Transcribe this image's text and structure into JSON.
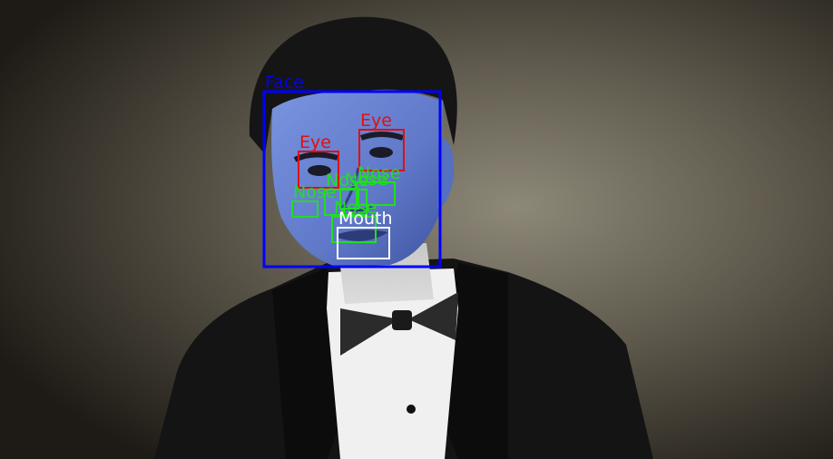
{
  "scene": {
    "description_colors": {
      "background_dark": "#1f1c17",
      "background_light": "#8a8574",
      "face_tint": "#6e88d8",
      "hair": "#161616",
      "jacket": "#151515",
      "shirt": "#f2f2f2"
    }
  },
  "detections": [
    {
      "label": "Face",
      "color": "#0000ff"
    },
    {
      "label": "Eye",
      "color": "#e01010"
    },
    {
      "label": "Eye",
      "color": "#e01010"
    },
    {
      "label": "Nose",
      "color": "#22dd22"
    },
    {
      "label": "Nose",
      "color": "#22dd22"
    },
    {
      "label": "Nose",
      "color": "#22dd22"
    },
    {
      "label": "Nose",
      "color": "#22dd22"
    },
    {
      "label": "Nose",
      "color": "#22dd22"
    },
    {
      "label": "Mouth",
      "color": "#ffffff"
    }
  ]
}
